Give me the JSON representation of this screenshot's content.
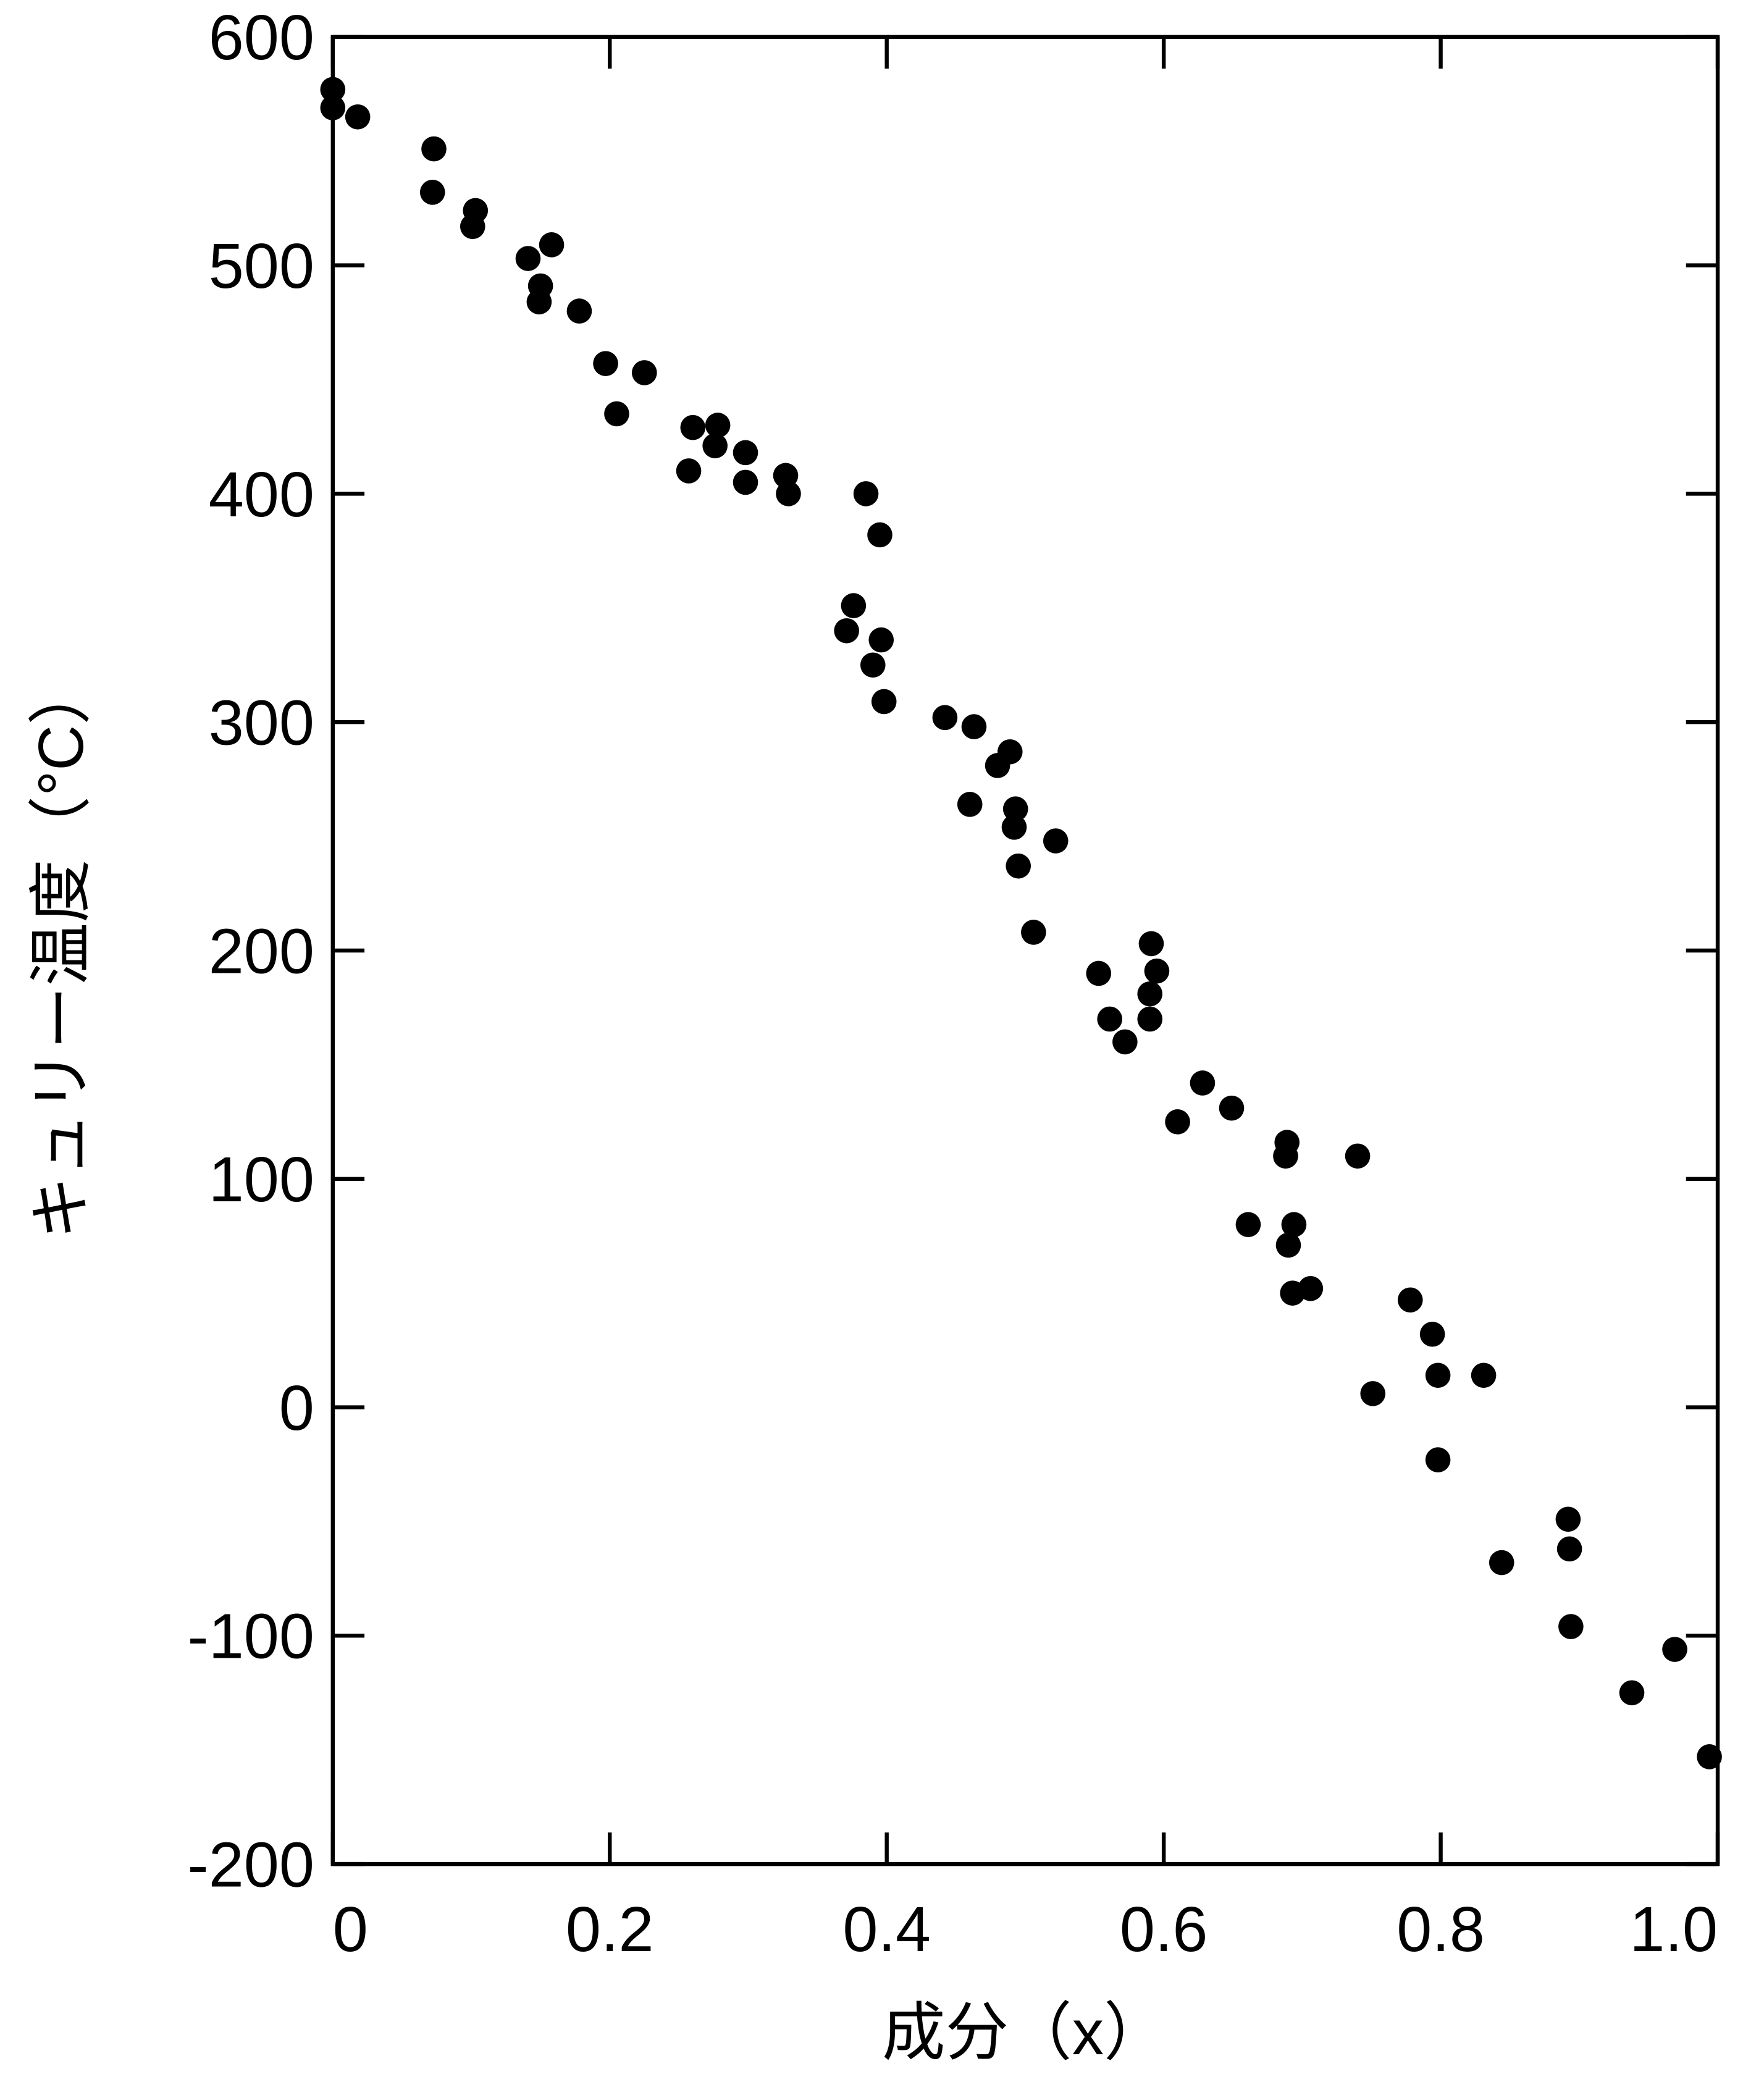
{
  "chart_data": {
    "type": "scatter",
    "xlabel": "成分（x）",
    "ylabel": "キュリー温度（°C）",
    "color": "#000000",
    "xlim": [
      0,
      1
    ],
    "ylim": [
      -200,
      600
    ],
    "xticks": [
      0,
      0.2,
      0.4,
      0.6,
      0.8,
      {
        "value": 1,
        "label": "1.0"
      }
    ],
    "yticks": [
      600,
      500,
      400,
      300,
      200,
      100,
      0,
      -100,
      -200
    ],
    "x": [
      0,
      0,
      0.018,
      0.073,
      0.072,
      0.103,
      0.101,
      0.141,
      0.158,
      0.15,
      0.149,
      0.178,
      0.197,
      0.225,
      0.205,
      0.26,
      0.278,
      0.276,
      0.298,
      0.257,
      0.298,
      0.327,
      0.329,
      0.385,
      0.395,
      0.376,
      0.371,
      0.396,
      0.39,
      0.398,
      0.442,
      0.463,
      0.489,
      0.48,
      0.493,
      0.46,
      0.492,
      0.495,
      0.522,
      0.506,
      0.591,
      0.553,
      0.595,
      0.59,
      0.561,
      0.59,
      0.572,
      0.628,
      0.649,
      0.61,
      0.689,
      0.688,
      0.74,
      0.661,
      0.694,
      0.69,
      0.706,
      0.693,
      0.778,
      0.794,
      0.798,
      0.831,
      0.751,
      0.798,
      0.892,
      0.893,
      0.844,
      0.894,
      0.969,
      0.938,
      0.994
    ],
    "values": [
      577,
      569,
      565,
      551,
      532,
      524,
      517,
      503,
      509,
      491,
      484,
      480,
      457,
      453,
      435,
      429,
      430,
      421,
      418,
      410,
      405,
      408,
      400,
      400,
      382,
      351,
      340,
      336,
      325,
      309,
      302,
      298,
      287,
      281,
      262,
      264,
      254,
      237,
      248,
      208,
      203,
      190,
      191,
      181,
      170,
      170,
      160,
      142,
      131,
      125,
      116,
      110,
      110,
      80,
      80,
      71,
      52,
      50,
      47,
      32,
      14,
      14,
      6,
      -23,
      -49,
      -62,
      -68,
      -96,
      -106,
      -125,
      -153
    ]
  }
}
